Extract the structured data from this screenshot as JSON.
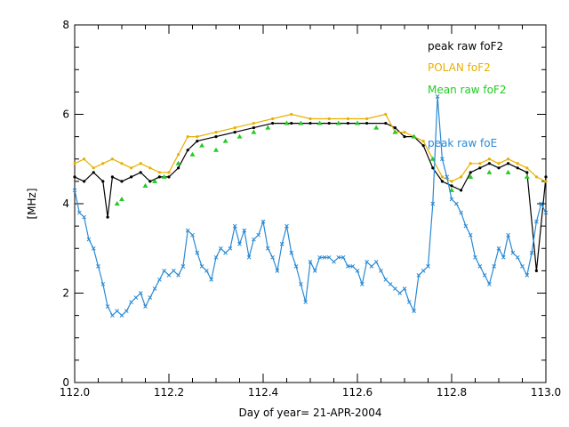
{
  "chart_data": {
    "type": "line",
    "title": "",
    "xlabel": "Day of year= 21-APR-2004",
    "ylabel": "[MHz]",
    "xlim": [
      112.0,
      113.0
    ],
    "ylim": [
      0,
      8
    ],
    "x_ticks": [
      "112.0",
      "112.2",
      "112.4",
      "112.6",
      "112.8",
      "113.0"
    ],
    "y_ticks": [
      "0",
      "2",
      "4",
      "6",
      "8"
    ],
    "legend_position": "top-right",
    "series": [
      {
        "name": "peak raw foF2",
        "color": "#000000",
        "marker": "dot",
        "x": [
          112.0,
          112.02,
          112.04,
          112.06,
          112.07,
          112.08,
          112.1,
          112.12,
          112.14,
          112.16,
          112.18,
          112.2,
          112.22,
          112.24,
          112.26,
          112.3,
          112.34,
          112.38,
          112.42,
          112.46,
          112.5,
          112.54,
          112.58,
          112.62,
          112.66,
          112.68,
          112.7,
          112.72,
          112.74,
          112.76,
          112.78,
          112.8,
          112.82,
          112.84,
          112.86,
          112.88,
          112.9,
          112.92,
          112.94,
          112.96,
          112.98,
          113.0
        ],
        "y": [
          4.6,
          4.5,
          4.7,
          4.5,
          3.7,
          4.6,
          4.5,
          4.6,
          4.7,
          4.5,
          4.6,
          4.6,
          4.8,
          5.2,
          5.4,
          5.5,
          5.6,
          5.7,
          5.8,
          5.8,
          5.8,
          5.8,
          5.8,
          5.8,
          5.8,
          5.7,
          5.5,
          5.5,
          5.3,
          4.8,
          4.5,
          4.4,
          4.3,
          4.7,
          4.8,
          4.9,
          4.8,
          4.9,
          4.8,
          4.7,
          2.5,
          4.6
        ]
      },
      {
        "name": "POLAN foF2",
        "color": "#e8b000",
        "marker": "dot",
        "x": [
          112.0,
          112.02,
          112.04,
          112.06,
          112.08,
          112.1,
          112.12,
          112.14,
          112.16,
          112.18,
          112.2,
          112.22,
          112.24,
          112.26,
          112.3,
          112.34,
          112.38,
          112.42,
          112.46,
          112.5,
          112.54,
          112.58,
          112.62,
          112.66,
          112.68,
          112.7,
          112.72,
          112.74,
          112.76,
          112.78,
          112.8,
          112.82,
          112.84,
          112.86,
          112.88,
          112.9,
          112.92,
          112.94,
          112.96,
          112.98,
          113.0
        ],
        "y": [
          4.9,
          5.0,
          4.8,
          4.9,
          5.0,
          4.9,
          4.8,
          4.9,
          4.8,
          4.7,
          4.7,
          5.1,
          5.5,
          5.5,
          5.6,
          5.7,
          5.8,
          5.9,
          6.0,
          5.9,
          5.9,
          5.9,
          5.9,
          6.0,
          5.6,
          5.6,
          5.5,
          5.4,
          5.0,
          4.6,
          4.5,
          4.6,
          4.9,
          4.9,
          5.0,
          4.9,
          5.0,
          4.9,
          4.8,
          4.6,
          4.5
        ]
      },
      {
        "name": "Mean raw foF2",
        "color": "#22cc22",
        "marker": "triangle",
        "x": [
          112.09,
          112.1,
          112.15,
          112.17,
          112.19,
          112.22,
          112.25,
          112.27,
          112.3,
          112.32,
          112.35,
          112.38,
          112.41,
          112.45,
          112.48,
          112.52,
          112.56,
          112.6,
          112.64,
          112.68,
          112.72,
          112.76,
          112.8,
          112.84,
          112.88,
          112.92,
          112.96
        ],
        "y": [
          4.0,
          4.1,
          4.4,
          4.5,
          4.6,
          4.9,
          5.1,
          5.3,
          5.2,
          5.4,
          5.5,
          5.6,
          5.7,
          5.8,
          5.8,
          5.8,
          5.8,
          5.8,
          5.7,
          5.6,
          5.5,
          5.0,
          4.3,
          4.6,
          4.7,
          4.7,
          4.6
        ]
      },
      {
        "name": "peak raw foE",
        "color": "#2a8ad4",
        "marker": "x",
        "x": [
          112.0,
          112.01,
          112.02,
          112.03,
          112.04,
          112.05,
          112.06,
          112.07,
          112.08,
          112.09,
          112.1,
          112.11,
          112.12,
          112.13,
          112.14,
          112.15,
          112.16,
          112.17,
          112.18,
          112.19,
          112.2,
          112.21,
          112.22,
          112.23,
          112.24,
          112.25,
          112.26,
          112.27,
          112.28,
          112.29,
          112.3,
          112.31,
          112.32,
          112.33,
          112.34,
          112.35,
          112.36,
          112.37,
          112.38,
          112.39,
          112.4,
          112.41,
          112.42,
          112.43,
          112.44,
          112.45,
          112.46,
          112.47,
          112.48,
          112.49,
          112.5,
          112.51,
          112.52,
          112.53,
          112.54,
          112.55,
          112.56,
          112.57,
          112.58,
          112.59,
          112.6,
          112.61,
          112.62,
          112.63,
          112.64,
          112.65,
          112.66,
          112.67,
          112.68,
          112.69,
          112.7,
          112.71,
          112.72,
          112.73,
          112.74,
          112.75,
          112.76,
          112.77,
          112.78,
          112.79,
          112.8,
          112.81,
          112.82,
          112.83,
          112.84,
          112.85,
          112.86,
          112.87,
          112.88,
          112.89,
          112.9,
          112.91,
          112.92,
          112.93,
          112.94,
          112.95,
          112.96,
          112.97,
          112.98,
          112.99,
          113.0
        ],
        "y": [
          4.3,
          3.8,
          3.7,
          3.2,
          3.0,
          2.6,
          2.2,
          1.7,
          1.5,
          1.6,
          1.5,
          1.6,
          1.8,
          1.9,
          2.0,
          1.7,
          1.9,
          2.1,
          2.3,
          2.5,
          2.4,
          2.5,
          2.4,
          2.6,
          3.4,
          3.3,
          2.9,
          2.6,
          2.5,
          2.3,
          2.8,
          3.0,
          2.9,
          3.0,
          3.5,
          3.1,
          3.4,
          2.8,
          3.2,
          3.3,
          3.6,
          3.0,
          2.8,
          2.5,
          3.1,
          3.5,
          2.9,
          2.6,
          2.2,
          1.8,
          2.7,
          2.5,
          2.8,
          2.8,
          2.8,
          2.7,
          2.8,
          2.8,
          2.6,
          2.6,
          2.5,
          2.2,
          2.7,
          2.6,
          2.7,
          2.5,
          2.3,
          2.2,
          2.1,
          2.0,
          2.1,
          1.8,
          1.6,
          2.4,
          2.5,
          2.6,
          4.0,
          6.4,
          5.0,
          4.6,
          4.1,
          4.0,
          3.8,
          3.5,
          3.3,
          2.8,
          2.6,
          2.4,
          2.2,
          2.6,
          3.0,
          2.8,
          3.3,
          2.9,
          2.8,
          2.6,
          2.4,
          2.9,
          3.6,
          4.0,
          3.8
        ]
      }
    ]
  }
}
